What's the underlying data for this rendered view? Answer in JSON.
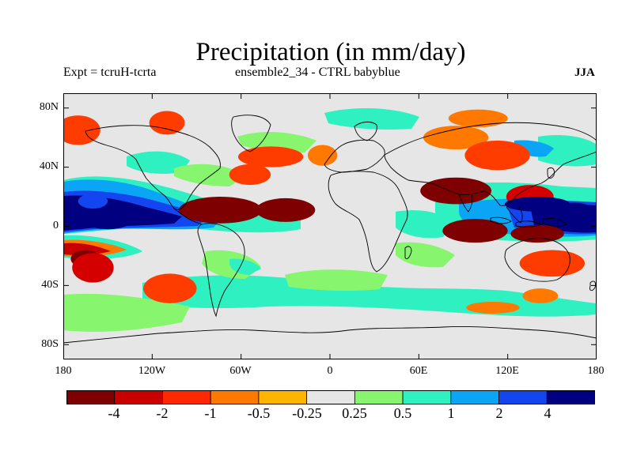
{
  "title": "Precipitation (in mm/day)",
  "experiment": "Expt = tcruH-tcrta",
  "run_label": "ensemble2_34 - CTRL babyblue",
  "season": "JJA",
  "axes": {
    "lat_ticks": [
      "80N",
      "40N",
      "0",
      "40S",
      "80S"
    ],
    "lon_ticks": [
      "180",
      "120W",
      "60W",
      "0",
      "60E",
      "120E",
      "180"
    ]
  },
  "colors": {
    "background": "#e6e6e6",
    "land_outline": "#000000",
    "dark_red": "#7f0000",
    "red": "#d40000",
    "orange_red": "#ff3c00",
    "orange": "#ff7800",
    "amber": "#ffb400",
    "lime": "#87f56e",
    "aqua": "#2ef0c0",
    "sky": "#0aa5f5",
    "blue": "#1446f0",
    "navy": "#000080"
  },
  "colorbar": {
    "labels": [
      "-4",
      "-2",
      "-1",
      "-0.5",
      "-0.25",
      "0.25",
      "0.5",
      "1",
      "2",
      "4"
    ],
    "colors": [
      "#7f0000",
      "#c80000",
      "#ff2800",
      "#ff7800",
      "#ffb400",
      "#e6e6e6",
      "#87f56e",
      "#2ef0c0",
      "#0aa5f5",
      "#1446f0",
      "#000080"
    ]
  },
  "map": {
    "regions": [
      {
        "lon": -170,
        "lat": 8,
        "rx": 14,
        "ry": 10,
        "color": "navy"
      },
      {
        "lon": -150,
        "lat": 6,
        "rx": 18,
        "ry": 8,
        "color": "navy"
      },
      {
        "lon": -160,
        "lat": 17,
        "rx": 10,
        "ry": 5,
        "color": "blue"
      },
      {
        "lon": -165,
        "lat": -22,
        "rx": 10,
        "ry": 6,
        "color": "dark_red"
      },
      {
        "lon": -160,
        "lat": -28,
        "rx": 14,
        "ry": 10,
        "color": "red"
      },
      {
        "lon": -108,
        "lat": -42,
        "rx": 18,
        "ry": 10,
        "color": "orange_red"
      },
      {
        "lon": -74,
        "lat": 11,
        "rx": 28,
        "ry": 9,
        "color": "dark_red"
      },
      {
        "lon": -30,
        "lat": 11,
        "rx": 20,
        "ry": 8,
        "color": "dark_red"
      },
      {
        "lon": -54,
        "lat": 35,
        "rx": 14,
        "ry": 7,
        "color": "orange_red"
      },
      {
        "lon": -40,
        "lat": 47,
        "rx": 22,
        "ry": 7,
        "color": "orange_red"
      },
      {
        "lon": -170,
        "lat": 65,
        "rx": 15,
        "ry": 10,
        "color": "orange_red"
      },
      {
        "lon": -110,
        "lat": 70,
        "rx": 12,
        "ry": 8,
        "color": "orange_red"
      },
      {
        "lon": -5,
        "lat": 48,
        "rx": 10,
        "ry": 7,
        "color": "orange"
      },
      {
        "lon": 85,
        "lat": 60,
        "rx": 22,
        "ry": 8,
        "color": "orange"
      },
      {
        "lon": 113,
        "lat": 48,
        "rx": 22,
        "ry": 10,
        "color": "orange_red"
      },
      {
        "lon": 85,
        "lat": 24,
        "rx": 24,
        "ry": 9,
        "color": "dark_red"
      },
      {
        "lon": 135,
        "lat": 20,
        "rx": 16,
        "ry": 8,
        "color": "red"
      },
      {
        "lon": 98,
        "lat": -3,
        "rx": 22,
        "ry": 8,
        "color": "dark_red"
      },
      {
        "lon": 140,
        "lat": -5,
        "rx": 18,
        "ry": 6,
        "color": "dark_red"
      },
      {
        "lon": 150,
        "lat": -25,
        "rx": 22,
        "ry": 9,
        "color": "orange_red"
      },
      {
        "lon": 140,
        "lat": 15,
        "rx": 22,
        "ry": 5,
        "color": "navy"
      },
      {
        "lon": 165,
        "lat": 8,
        "rx": 15,
        "ry": 8,
        "color": "navy"
      },
      {
        "lon": 142,
        "lat": -47,
        "rx": 12,
        "ry": 5,
        "color": "orange"
      },
      {
        "lon": 110,
        "lat": -55,
        "rx": 18,
        "ry": 4,
        "color": "orange"
      },
      {
        "lon": 100,
        "lat": 73,
        "rx": 20,
        "ry": 6,
        "color": "orange"
      }
    ]
  }
}
